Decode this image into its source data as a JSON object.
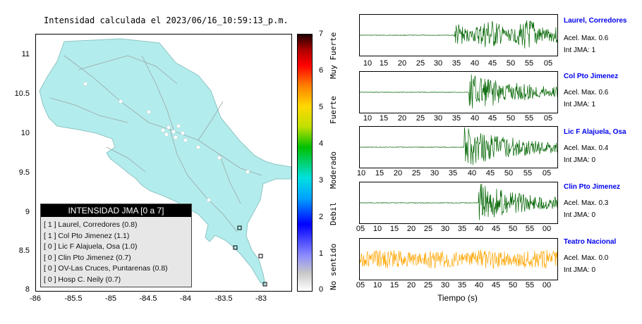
{
  "map": {
    "title": "Intensidad calculada el 2023/06/16_10:59:13_p.m.",
    "y_ticks": [
      "11",
      "10.5",
      "10",
      "9.5",
      "9",
      "8.5",
      "8"
    ],
    "x_ticks": [
      "-86",
      "-85.5",
      "-85",
      "-84.5",
      "-84",
      "-83.5",
      "-83"
    ],
    "legend": {
      "title": "INTENSIDAD JMA [0 a 7]",
      "rows": [
        "[ 1 ]  Laurel, Corredores (0.8)",
        "[ 1 ]  Col Pto Jimenez (1.1)",
        "[ 0 ]  Lic F Alajuela, Osa (1.0)",
        "[ 0 ]  Clin Pto Jimenez (0.7)",
        "[ 0 ]  OV-Las Cruces, Puntarenas (0.8)",
        "[ 0 ]  Hosp C. Neily (0.7)"
      ]
    },
    "colors": {
      "land": "#b3ecec",
      "roads": "#9aa6a8",
      "station_marker": "#000000"
    }
  },
  "colorbar": {
    "ticks": [
      "7",
      "6",
      "5",
      "4",
      "3",
      "2",
      "1",
      "0"
    ],
    "labels": [
      "Muy Fuerte",
      "Fuerte",
      "Moderado",
      "Debil",
      "No sentido"
    ]
  },
  "panels": [
    {
      "station": "Laurel, Corredores",
      "accel": "Acel. Max. 0.6",
      "jma": "Int JMA: 1",
      "ticks": [
        "10",
        "15",
        "20",
        "25",
        "30",
        "35",
        "40",
        "45",
        "50",
        "55",
        "05"
      ],
      "color": "#006400",
      "onset": 0.48
    },
    {
      "station": "Col Pto Jimenez",
      "accel": "Acel. Max. 0.6",
      "jma": "Int JMA: 1",
      "ticks": [
        "10",
        "15",
        "20",
        "25",
        "30",
        "35",
        "40",
        "45",
        "50",
        "55",
        "05"
      ],
      "color": "#006400",
      "onset": 0.55
    },
    {
      "station": "Lic F Alajuela, Osa",
      "accel": "Acel. Max. 0.4",
      "jma": "Int JMA: 0",
      "ticks": [
        "10",
        "15",
        "20",
        "25",
        "30",
        "35",
        "40",
        "45",
        "50",
        "55",
        "05"
      ],
      "color": "#006400",
      "onset": 0.53
    },
    {
      "station": "Clin Pto Jimenez",
      "accel": "Acel. Max. 0.3",
      "jma": "Int JMA: 0",
      "ticks": [
        "05",
        "10",
        "15",
        "20",
        "25",
        "30",
        "35",
        "40",
        "45",
        "50",
        "55",
        "00"
      ],
      "color": "#006400",
      "onset": 0.6
    },
    {
      "station": "Teatro Nacional",
      "accel": "Acel. Max. 0.0",
      "jma": "Int JMA: 0",
      "ticks": [
        "05",
        "10",
        "15",
        "20",
        "25",
        "30",
        "35",
        "40",
        "45",
        "50",
        "55",
        "00"
      ],
      "color": "#ffa500",
      "onset": 0.0
    }
  ],
  "x_axis_title": "Tiempo (s)"
}
